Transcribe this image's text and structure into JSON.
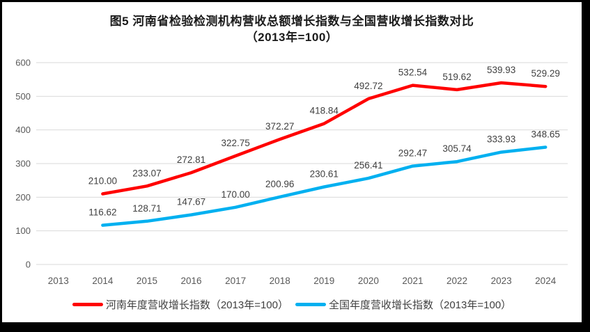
{
  "title": {
    "line1": "图5  河南省检验检测机构营收总额增长指数与全国营收增长指数对比",
    "line2": "（2013年=100）"
  },
  "colors": {
    "border": "#000000",
    "grid": "#D9D9D9",
    "axis_text": "#595959",
    "data_label_text": "#404040",
    "series_henan": "#FF0000",
    "series_national": "#00B0F0"
  },
  "chart_data": {
    "type": "line",
    "categories": [
      "2013",
      "2014",
      "2015",
      "2016",
      "2017",
      "2018",
      "2019",
      "2020",
      "2021",
      "2022",
      "2023",
      "2024"
    ],
    "series": [
      {
        "name": "河南年度营收增长指数（2013年=100）",
        "color": "#FF0000",
        "values": [
          null,
          210.0,
          233.07,
          272.81,
          322.75,
          372.27,
          418.84,
          492.72,
          532.54,
          519.62,
          539.93,
          529.29
        ]
      },
      {
        "name": "全国年度营收增长指数（2013年=100）",
        "color": "#00B0F0",
        "values": [
          null,
          116.62,
          128.71,
          147.67,
          170.0,
          200.96,
          230.61,
          256.41,
          292.47,
          305.74,
          333.93,
          348.65
        ]
      }
    ],
    "title": "图5  河南省检验检测机构营收总额增长指数与全国营收增长指数对比（2013年=100）",
    "xlabel": "",
    "ylabel": "",
    "ylim": [
      0,
      600
    ],
    "yticks": [
      0,
      100,
      200,
      300,
      400,
      500,
      600
    ],
    "grid": true,
    "legend_position": "bottom",
    "data_labels": true,
    "data_label_decimals": 2
  }
}
